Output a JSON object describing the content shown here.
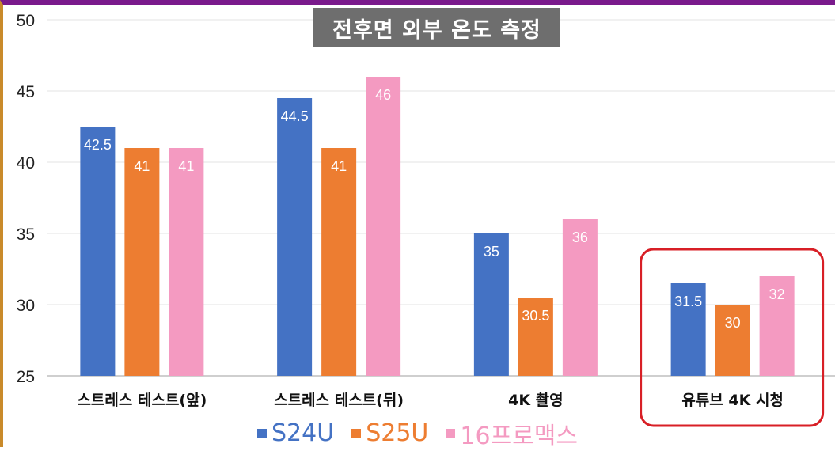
{
  "chart_data": {
    "type": "bar",
    "title": "전후면 외부 온도 측정",
    "categories": [
      "스트레스 테스트(앞)",
      "스트레스 테스트(뒤)",
      "4K 촬영",
      "유튜브 4K 시청"
    ],
    "series": [
      {
        "name": "S24U",
        "color": "#4472c4",
        "values": [
          42.5,
          44.5,
          35,
          31.5
        ]
      },
      {
        "name": "S25U",
        "color": "#ed7d31",
        "values": [
          41,
          41,
          30.5,
          30
        ]
      },
      {
        "name": "16프로맥스",
        "color": "#f49ac1",
        "values": [
          41,
          46,
          36,
          32
        ]
      }
    ],
    "value_labels": [
      [
        "42.5",
        "41",
        "41"
      ],
      [
        "44.5",
        "41",
        "46"
      ],
      [
        "35",
        "30.5",
        "36"
      ],
      [
        "31.5",
        "30",
        "32"
      ]
    ],
    "ylim": [
      25,
      50
    ],
    "yticks": [
      "25",
      "30",
      "35",
      "40",
      "45",
      "50"
    ],
    "grid": true,
    "legend_position": "bottom",
    "highlighted_category": "유튜브 4K 시청",
    "highlight_color": "#d81f26"
  }
}
